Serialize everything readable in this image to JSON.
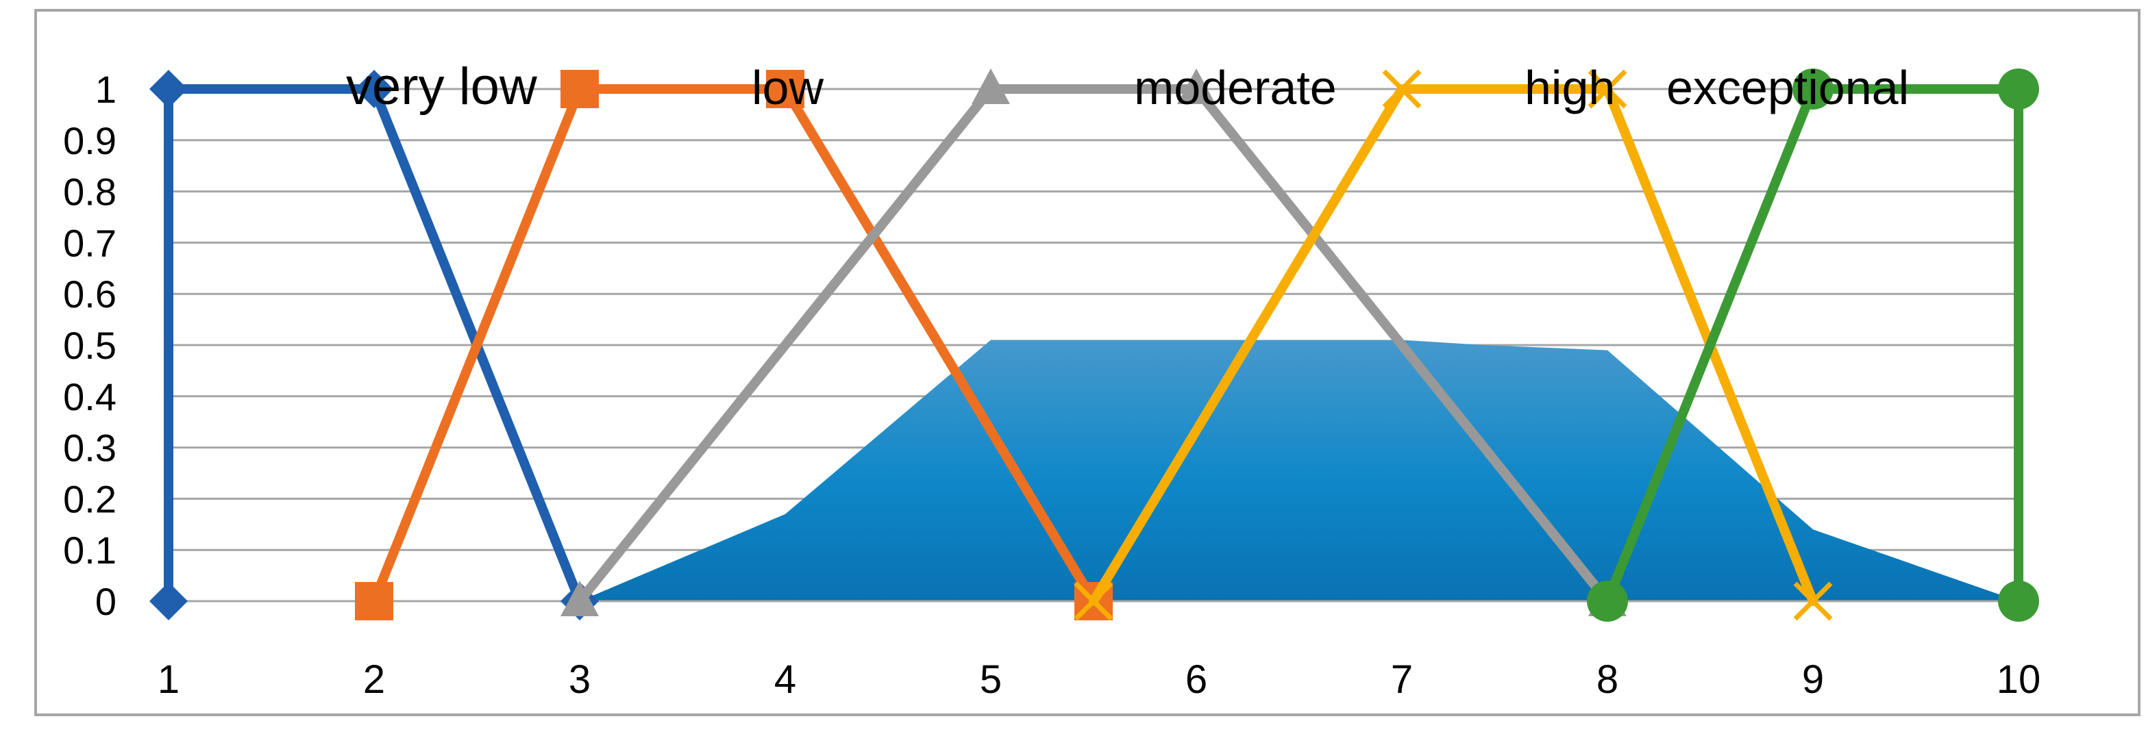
{
  "chart_data": {
    "type": "line",
    "title": "",
    "xlabel": "",
    "ylabel": "",
    "x_categories": [
      "1",
      "2",
      "3",
      "4",
      "5",
      "6",
      "7",
      "8",
      "9",
      "10"
    ],
    "y_ticks": [
      "0",
      "0.1",
      "0.2",
      "0.3",
      "0.4",
      "0.5",
      "0.6",
      "0.7",
      "0.8",
      "0.9",
      "1"
    ],
    "ylim": [
      0,
      1
    ],
    "xlim": [
      1,
      10
    ],
    "grid": "horizontal",
    "legend_position": "top (inside plot)",
    "series": [
      {
        "name": "very low",
        "color": "#1F5FAE",
        "marker": "diamond",
        "points": [
          [
            1,
            0
          ],
          [
            1,
            1
          ],
          [
            2,
            1
          ],
          [
            3,
            0
          ]
        ]
      },
      {
        "name": "low",
        "color": "#ED7022",
        "marker": "square",
        "points": [
          [
            2,
            0
          ],
          [
            3,
            1
          ],
          [
            4,
            1
          ],
          [
            5.5,
            0
          ]
        ]
      },
      {
        "name": "moderate",
        "color": "#999999",
        "marker": "triangle",
        "points": [
          [
            3,
            0
          ],
          [
            5,
            1
          ],
          [
            6,
            1
          ],
          [
            8,
            0
          ]
        ]
      },
      {
        "name": "high",
        "color": "#F7AE00",
        "marker": "x",
        "points": [
          [
            5.5,
            0
          ],
          [
            7,
            1
          ],
          [
            8,
            1
          ],
          [
            9,
            0
          ]
        ]
      },
      {
        "name": "exceptional",
        "color": "#3C9A35",
        "marker": "circle",
        "points": [
          [
            8,
            0
          ],
          [
            9,
            1
          ],
          [
            10,
            1
          ],
          [
            10,
            0
          ]
        ]
      }
    ],
    "area": {
      "color_top": "#4699CC",
      "color_mid": "#0E87C8",
      "color_bottom": "#0A72B2",
      "points": [
        [
          3,
          0
        ],
        [
          4,
          0.17
        ],
        [
          5,
          0.51
        ],
        [
          7,
          0.51
        ],
        [
          7.4,
          0.5
        ],
        [
          8,
          0.49
        ],
        [
          9,
          0.14
        ],
        [
          10,
          0
        ]
      ]
    }
  }
}
